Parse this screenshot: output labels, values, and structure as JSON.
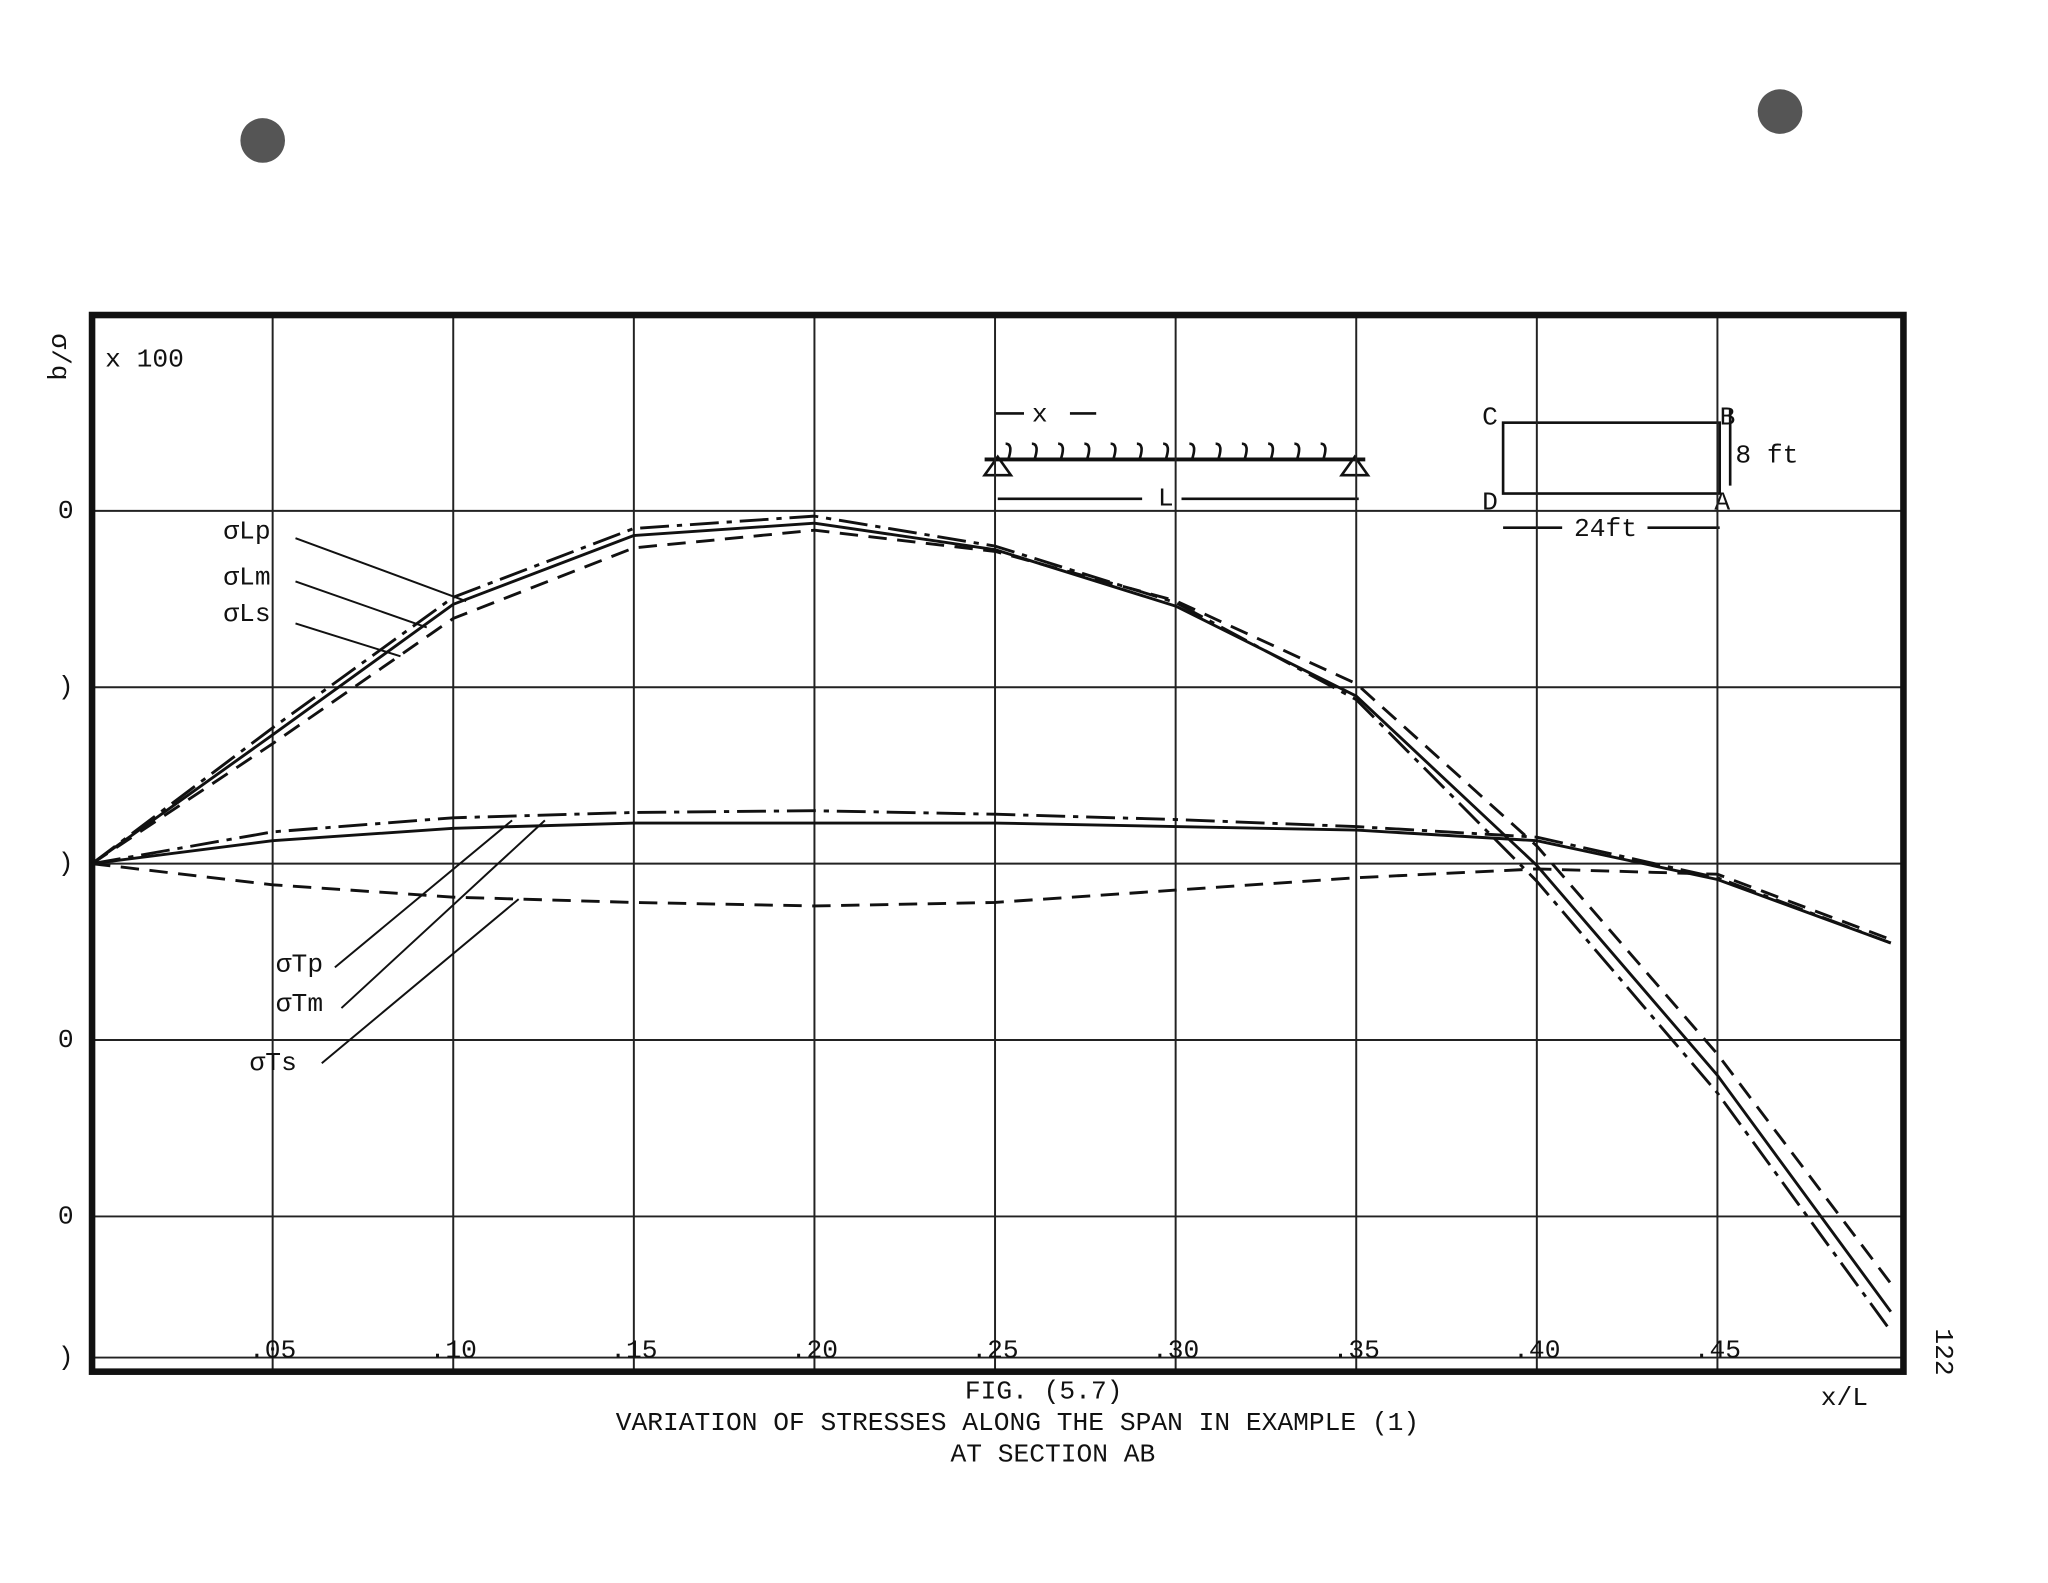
{
  "chart_data": {
    "type": "line",
    "caption": [
      "FIG. (5.7)",
      "VARIATION OF STRESSES ALONG THE SPAN IN EXAMPLE (1)",
      "AT SECTION AB"
    ],
    "y_label": "σ/q",
    "y_multiplier": "x 100",
    "x_label": "x/L",
    "page_number": "122",
    "x": [
      0,
      0.05,
      0.1,
      0.15,
      0.2,
      0.25,
      0.3,
      0.35,
      0.4,
      0.45,
      0.498
    ],
    "series": [
      {
        "name": "σLp",
        "color": "#111111",
        "dash": "solid",
        "values": [
          0,
          7.3,
          14.7,
          18.6,
          19.3,
          17.8,
          14.6,
          9.5,
          -0.1,
          -12,
          -25.4
        ]
      },
      {
        "name": "σLm",
        "color": "#111111",
        "dash": "dashdot",
        "values": [
          0,
          7.7,
          15.1,
          19.0,
          19.7,
          18.0,
          14.8,
          9.3,
          -1,
          -13,
          -26.5
        ]
      },
      {
        "name": "σLs",
        "color": "#111111",
        "dash": "dashed",
        "values": [
          0,
          6.8,
          13.9,
          17.9,
          18.9,
          17.7,
          14.9,
          10.2,
          1,
          -10.8,
          -23.8
        ]
      },
      {
        "name": "σTp",
        "color": "#111111",
        "dash": "solid",
        "values": [
          0,
          1.3,
          2.0,
          2.3,
          2.3,
          2.3,
          2.1,
          1.9,
          1.3,
          -0.9,
          -4.5
        ]
      },
      {
        "name": "σTm",
        "color": "#111111",
        "dash": "dashdot",
        "values": [
          0,
          1.8,
          2.6,
          2.9,
          3.0,
          2.8,
          2.5,
          2.1,
          1.5,
          -0.8,
          -4.5
        ]
      },
      {
        "name": "σTs",
        "color": "#111111",
        "dash": "dashed",
        "values": [
          0,
          -1.2,
          -1.9,
          -2.2,
          -2.4,
          -2.2,
          -1.5,
          -0.8,
          -0.3,
          -0.6,
          -4.3
        ]
      }
    ],
    "xlim": [
      0,
      0.5015
    ],
    "ylim": [
      -28.8,
      31.1
    ],
    "xticks": [
      {
        "value": 0.05,
        "label": ".05"
      },
      {
        "value": 0.1,
        "label": ".10"
      },
      {
        "value": 0.15,
        "label": ".15"
      },
      {
        "value": 0.2,
        "label": ".20"
      },
      {
        "value": 0.25,
        "label": ".25"
      },
      {
        "value": 0.3,
        "label": ".30"
      },
      {
        "value": 0.35,
        "label": ".35"
      },
      {
        "value": 0.4,
        "label": ".40"
      },
      {
        "value": 0.45,
        "label": ".45"
      }
    ],
    "yticks": [
      {
        "value": 20,
        "label": "0"
      },
      {
        "value": 10,
        "label": ")"
      },
      {
        "value": 0,
        "label": ")"
      },
      {
        "value": -10,
        "label": "0"
      },
      {
        "value": -20,
        "label": "0"
      },
      {
        "value": -28,
        "label": ")"
      }
    ],
    "grid": true
  },
  "inset": {
    "x_label": "x",
    "span_label": "L",
    "corners": [
      "C",
      "B",
      "D",
      "A"
    ],
    "height": "8 ft",
    "width": "24ft"
  }
}
